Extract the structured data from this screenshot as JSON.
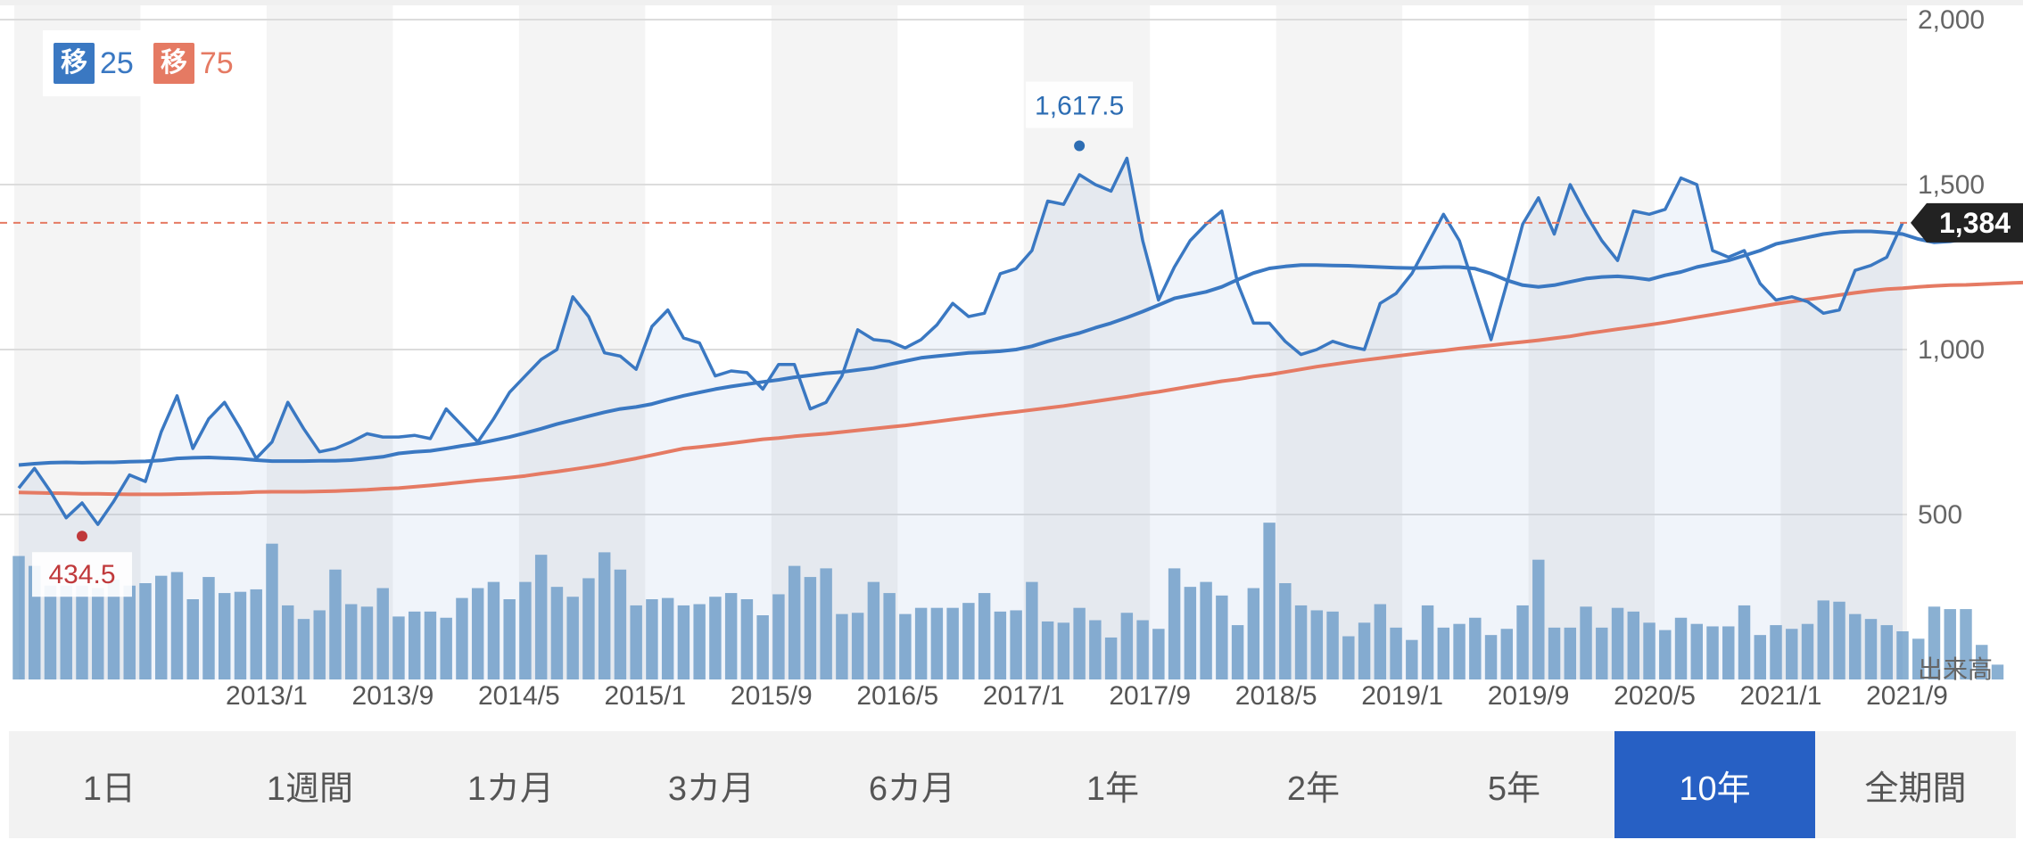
{
  "chart_data": {
    "type": "line",
    "y_ticks": [
      "2,000",
      "1,500",
      "1,000",
      "500"
    ],
    "y_tick_values": [
      2000,
      1500,
      1000,
      500
    ],
    "ylim": [
      0,
      2000
    ],
    "x_labels": [
      "2013/1",
      "2013/9",
      "2014/5",
      "2015/1",
      "2015/9",
      "2016/5",
      "2017/1",
      "2017/9",
      "2018/5",
      "2019/1",
      "2019/9",
      "2020/5",
      "2021/1",
      "2021/9"
    ],
    "volume_label": "出来高",
    "current_price": 1384,
    "current_price_label": "1,384",
    "high_label": "1,617.5",
    "high_value": 1617.5,
    "high_index": 67,
    "low_label": "434.5",
    "low_value": 434.5,
    "low_index": 4,
    "colors": {
      "price": "#3a78c2",
      "ma25": "#3a78c2",
      "ma75": "#e57a63",
      "volume": "#8ab0d2",
      "high": "#2d6db3",
      "low": "#c0393b",
      "tab_active": "#2760c4"
    },
    "series": [
      {
        "name": "price",
        "values": [
          580,
          640,
          570,
          490,
          535,
          470,
          540,
          620,
          600,
          750,
          860,
          700,
          790,
          840,
          760,
          670,
          720,
          840,
          760,
          690,
          700,
          720,
          745,
          735,
          735,
          740,
          730,
          820,
          770,
          720,
          790,
          870,
          920,
          970,
          1000,
          1160,
          1100,
          990,
          980,
          940,
          1070,
          1120,
          1035,
          1020,
          920,
          935,
          930,
          880,
          955,
          955,
          820,
          840,
          920,
          1060,
          1030,
          1025,
          1005,
          1030,
          1075,
          1140,
          1100,
          1110,
          1230,
          1245,
          1300,
          1450,
          1440,
          1530,
          1500,
          1480,
          1580,
          1330,
          1150,
          1250,
          1330,
          1380,
          1420,
          1200,
          1080,
          1080,
          1025,
          985,
          1000,
          1025,
          1010,
          1000,
          1140,
          1170,
          1230,
          1320,
          1410,
          1330,
          1180,
          1030,
          1200,
          1380,
          1460,
          1350,
          1500,
          1410,
          1330,
          1270,
          1420,
          1410,
          1425,
          1520,
          1500,
          1300,
          1280,
          1300,
          1200,
          1150,
          1160,
          1145,
          1110,
          1120,
          1240,
          1255,
          1280,
          1384
        ]
      },
      {
        "name": "移25",
        "values": [
          650,
          654,
          657,
          658,
          657,
          658,
          658,
          660,
          661,
          664,
          670,
          672,
          673,
          671,
          669,
          665,
          662,
          662,
          662,
          663,
          663,
          665,
          670,
          675,
          685,
          690,
          693,
          700,
          708,
          715,
          725,
          735,
          747,
          760,
          774,
          786,
          798,
          810,
          820,
          826,
          835,
          848,
          860,
          870,
          880,
          888,
          895,
          902,
          908,
          916,
          922,
          928,
          932,
          938,
          944,
          955,
          965,
          975,
          980,
          985,
          990,
          992,
          995,
          1000,
          1010,
          1025,
          1038,
          1050,
          1066,
          1080,
          1097,
          1115,
          1135,
          1155,
          1165,
          1175,
          1190,
          1212,
          1232,
          1246,
          1252,
          1256,
          1256,
          1255,
          1254,
          1252,
          1250,
          1248,
          1247,
          1248,
          1250,
          1250,
          1245,
          1230,
          1210,
          1195,
          1190,
          1195,
          1205,
          1215,
          1220,
          1222,
          1218,
          1212,
          1225,
          1235,
          1250,
          1260,
          1270,
          1285,
          1300,
          1320,
          1330,
          1340,
          1350,
          1356,
          1358,
          1358,
          1355,
          1350,
          1335,
          1325,
          1328,
          1335,
          1345
        ]
      },
      {
        "name": "移75",
        "values": [
          567,
          566,
          565,
          564,
          563,
          563,
          562,
          561,
          561,
          561,
          562,
          563,
          564,
          565,
          566,
          568,
          569,
          569,
          569,
          570,
          571,
          573,
          575,
          578,
          580,
          584,
          588,
          593,
          598,
          603,
          607,
          612,
          617,
          624,
          630,
          637,
          644,
          652,
          661,
          670,
          680,
          690,
          700,
          705,
          710,
          716,
          722,
          728,
          732,
          737,
          741,
          745,
          750,
          755,
          760,
          765,
          770,
          776,
          782,
          788,
          794,
          800,
          806,
          811,
          817,
          823,
          829,
          836,
          843,
          850,
          857,
          865,
          872,
          880,
          888,
          896,
          904,
          910,
          918,
          924,
          932,
          940,
          948,
          955,
          962,
          968,
          974,
          980,
          986,
          992,
          997,
          1003,
          1008,
          1013,
          1018,
          1023,
          1028,
          1034,
          1040,
          1048,
          1055,
          1062,
          1068,
          1075,
          1082,
          1090,
          1098,
          1106,
          1114,
          1122,
          1130,
          1138,
          1145,
          1152,
          1158,
          1165,
          1172,
          1178,
          1183,
          1186,
          1190,
          1193,
          1195,
          1196,
          1198,
          1200,
          1202,
          1204,
          1207,
          1210,
          1215
        ]
      }
    ],
    "volume": [
      100,
      92,
      76,
      76,
      76,
      74,
      81,
      76,
      78,
      84,
      87,
      65,
      83,
      70,
      71,
      73,
      110,
      60,
      49,
      56,
      89,
      61,
      59,
      74,
      51,
      55,
      55,
      50,
      66,
      74,
      79,
      65,
      79,
      101,
      75,
      67,
      82,
      103,
      89,
      60,
      65,
      66,
      60,
      61,
      67,
      70,
      65,
      52,
      69,
      92,
      83,
      90,
      53,
      54,
      79,
      70,
      53,
      58,
      58,
      58,
      62,
      70,
      55,
      56,
      79,
      47,
      46,
      58,
      48,
      34,
      54,
      48,
      41,
      90,
      75,
      79,
      68,
      44,
      74,
      127,
      78,
      60,
      56,
      55,
      35,
      46,
      61,
      42,
      32,
      60,
      42,
      45,
      50,
      36,
      41,
      60,
      97,
      42,
      42,
      59,
      42,
      58,
      55,
      46,
      40,
      50,
      45,
      43,
      43,
      60,
      36,
      44,
      41,
      45,
      64,
      63,
      53,
      49,
      44,
      39,
      33,
      59,
      57,
      57,
      28,
      12
    ]
  },
  "legend": {
    "ma25_badge": "移",
    "ma25_value": "25",
    "ma75_badge": "移",
    "ma75_value": "75"
  },
  "tabs": [
    {
      "label": "1日",
      "active": false
    },
    {
      "label": "1週間",
      "active": false
    },
    {
      "label": "1カ月",
      "active": false
    },
    {
      "label": "3カ月",
      "active": false
    },
    {
      "label": "6カ月",
      "active": false
    },
    {
      "label": "1年",
      "active": false
    },
    {
      "label": "2年",
      "active": false
    },
    {
      "label": "5年",
      "active": false
    },
    {
      "label": "10年",
      "active": true
    },
    {
      "label": "全期間",
      "active": false
    }
  ]
}
